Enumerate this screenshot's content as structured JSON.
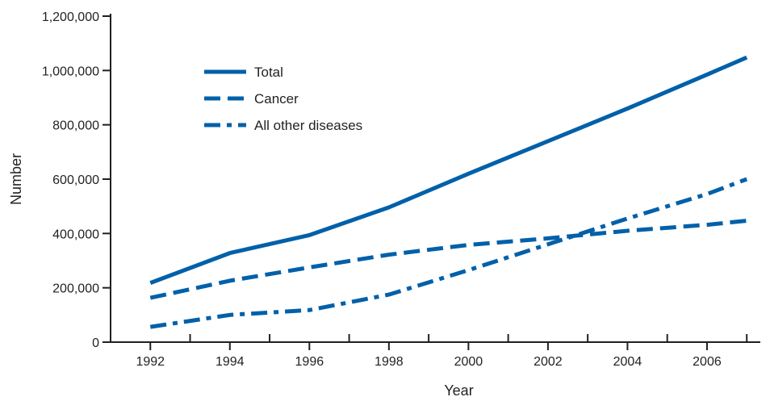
{
  "chart_data": {
    "type": "line",
    "xlabel": "Year",
    "ylabel": "Number",
    "x": [
      1992,
      1994,
      1996,
      1998,
      2000,
      2002,
      2004,
      2006,
      2007
    ],
    "xticks": [
      "1992",
      "1994",
      "1996",
      "1998",
      "2000",
      "2002",
      "2004",
      "2006"
    ],
    "yticks": [
      "0",
      "200,000",
      "400,000",
      "600,000",
      "800,000",
      "1,000,000",
      "1,200,000"
    ],
    "ylim": [
      0,
      1200000
    ],
    "xlim": [
      1991,
      2007.3
    ],
    "grid": false,
    "legend_position": "top-left",
    "line_color": "#0060a9",
    "series": [
      {
        "name": "Total",
        "style": "solid",
        "x": [
          1992,
          1994,
          1996,
          1998,
          2000,
          2002,
          2004,
          2006,
          2007
        ],
        "values": [
          218000,
          328000,
          394000,
          496000,
          620000,
          740000,
          860000,
          985000,
          1048000
        ]
      },
      {
        "name": "Cancer",
        "style": "dashed",
        "x": [
          1992,
          1994,
          1996,
          1998,
          2000,
          2002,
          2004,
          2006,
          2007
        ],
        "values": [
          163000,
          226000,
          275000,
          322000,
          358000,
          382000,
          410000,
          432000,
          447000
        ]
      },
      {
        "name": "All other diseases",
        "style": "dash-dot",
        "x": [
          1992,
          1994,
          1996,
          1998,
          2000,
          2002,
          2004,
          2006,
          2007
        ],
        "values": [
          56000,
          100000,
          118000,
          175000,
          265000,
          360000,
          455000,
          545000,
          600000
        ]
      }
    ]
  }
}
